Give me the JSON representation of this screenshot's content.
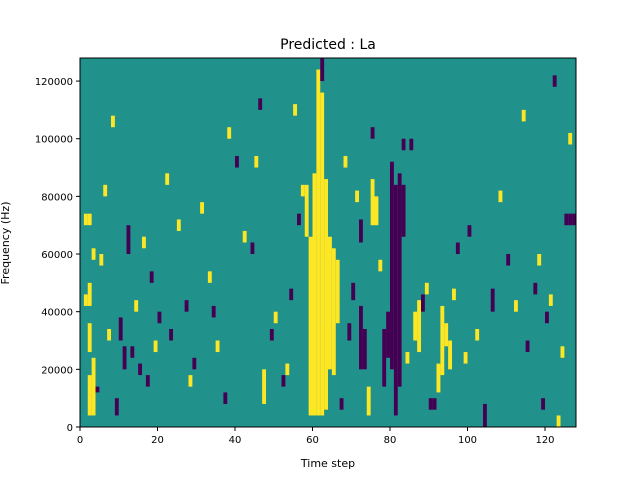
{
  "chart_data": {
    "type": "heatmap",
    "title": "Predicted : La",
    "xlabel": "Time step",
    "ylabel": "Frequency (Hz)",
    "xlim": [
      0,
      128
    ],
    "ylim": [
      0,
      128000
    ],
    "x_ticks": [
      0,
      20,
      40,
      60,
      80,
      100,
      120
    ],
    "y_ticks": [
      0,
      20000,
      40000,
      60000,
      80000,
      100000,
      120000
    ],
    "x_tick_labels": [
      "0",
      "20",
      "40",
      "60",
      "80",
      "100",
      "120"
    ],
    "y_tick_labels": [
      "0",
      "20000",
      "40000",
      "60000",
      "80000",
      "100000",
      "120000"
    ],
    "grid": false,
    "colormap": "viridis",
    "background_value": 0,
    "colors": {
      "low": "#440154",
      "mid": "#21918c",
      "high": "#fde725"
    },
    "cells": [
      {
        "t": 61,
        "f0": 4000,
        "f1": 124000,
        "v": 1
      },
      {
        "t": 62,
        "f0": 4000,
        "f1": 116000,
        "v": 1
      },
      {
        "t": 60,
        "f0": 4000,
        "f1": 88000,
        "v": 1
      },
      {
        "t": 63,
        "f0": 6000,
        "f1": 86000,
        "v": 1
      },
      {
        "t": 64,
        "f0": 20000,
        "f1": 66000,
        "v": 1
      },
      {
        "t": 65,
        "f0": 18000,
        "f1": 62000,
        "v": 1
      },
      {
        "t": 59,
        "f0": 4000,
        "f1": 66000,
        "v": 1
      },
      {
        "t": 58,
        "f0": 66000,
        "f1": 84000,
        "v": 1
      },
      {
        "t": 66,
        "f0": 36000,
        "f1": 58000,
        "v": 1
      },
      {
        "t": 62,
        "f0": 120000,
        "f1": 128000,
        "v": -1
      },
      {
        "t": 80,
        "f0": 20000,
        "f1": 92000,
        "v": -1
      },
      {
        "t": 81,
        "f0": 4000,
        "f1": 84000,
        "v": -1
      },
      {
        "t": 79,
        "f0": 24000,
        "f1": 40000,
        "v": -1
      },
      {
        "t": 78,
        "f0": 14000,
        "f1": 34000,
        "v": -1
      },
      {
        "t": 82,
        "f0": 14000,
        "f1": 88000,
        "v": -1
      },
      {
        "t": 83,
        "f0": 66000,
        "f1": 84000,
        "v": -1
      },
      {
        "t": 72,
        "f0": 20000,
        "f1": 42000,
        "v": -1
      },
      {
        "t": 73,
        "f0": 20000,
        "f1": 34000,
        "v": -1
      },
      {
        "t": 72,
        "f0": 64000,
        "f1": 72000,
        "v": -1
      },
      {
        "t": 75,
        "f0": 70000,
        "f1": 86000,
        "v": 1
      },
      {
        "t": 76,
        "f0": 70000,
        "f1": 80000,
        "v": 1
      },
      {
        "t": 74,
        "f0": 4000,
        "f1": 14000,
        "v": 1
      },
      {
        "t": 86,
        "f0": 30000,
        "f1": 40000,
        "v": 1
      },
      {
        "t": 87,
        "f0": 26000,
        "f1": 44000,
        "v": 1
      },
      {
        "t": 92,
        "f0": 12000,
        "f1": 22000,
        "v": 1
      },
      {
        "t": 93,
        "f0": 18000,
        "f1": 42000,
        "v": 1
      },
      {
        "t": 94,
        "f0": 28000,
        "f1": 36000,
        "v": 1
      },
      {
        "t": 95,
        "f0": 20000,
        "f1": 30000,
        "v": 1
      },
      {
        "t": 90,
        "f0": 6000,
        "f1": 10000,
        "v": -1
      },
      {
        "t": 91,
        "f0": 6000,
        "f1": 10000,
        "v": -1
      },
      {
        "t": 83,
        "f0": 96000,
        "f1": 100000,
        "v": -1
      },
      {
        "t": 85,
        "f0": 96000,
        "f1": 100000,
        "v": -1
      },
      {
        "t": 125,
        "f0": 70000,
        "f1": 74000,
        "v": -1
      },
      {
        "t": 126,
        "f0": 70000,
        "f1": 74000,
        "v": -1
      },
      {
        "t": 127,
        "f0": 70000,
        "f1": 74000,
        "v": -1
      },
      {
        "t": 2,
        "f0": 4000,
        "f1": 18000,
        "v": 1
      },
      {
        "t": 3,
        "f0": 4000,
        "f1": 24000,
        "v": 1
      },
      {
        "t": 2,
        "f0": 26000,
        "f1": 36000,
        "v": 1
      },
      {
        "t": 1,
        "f0": 42000,
        "f1": 46000,
        "v": 1
      },
      {
        "t": 2,
        "f0": 42000,
        "f1": 50000,
        "v": 1
      },
      {
        "t": 1,
        "f0": 70000,
        "f1": 74000,
        "v": 1
      },
      {
        "t": 2,
        "f0": 70000,
        "f1": 74000,
        "v": 1
      },
      {
        "t": 3,
        "f0": 58000,
        "f1": 62000,
        "v": 1
      },
      {
        "t": 4,
        "f0": 12000,
        "f1": 14000,
        "v": -1
      },
      {
        "t": 9,
        "f0": 4000,
        "f1": 10000,
        "v": -1
      },
      {
        "t": 10,
        "f0": 30000,
        "f1": 38000,
        "v": -1
      },
      {
        "t": 11,
        "f0": 20000,
        "f1": 28000,
        "v": -1
      },
      {
        "t": 12,
        "f0": 60000,
        "f1": 70000,
        "v": -1
      },
      {
        "t": 13,
        "f0": 24000,
        "f1": 28000,
        "v": -1
      },
      {
        "t": 15,
        "f0": 18000,
        "f1": 22000,
        "v": -1
      },
      {
        "t": 17,
        "f0": 14000,
        "f1": 18000,
        "v": -1
      },
      {
        "t": 18,
        "f0": 50000,
        "f1": 54000,
        "v": -1
      },
      {
        "t": 20,
        "f0": 36000,
        "f1": 40000,
        "v": -1
      },
      {
        "t": 23,
        "f0": 30000,
        "f1": 34000,
        "v": -1
      },
      {
        "t": 27,
        "f0": 40000,
        "f1": 44000,
        "v": -1
      },
      {
        "t": 29,
        "f0": 20000,
        "f1": 24000,
        "v": -1
      },
      {
        "t": 34,
        "f0": 38000,
        "f1": 42000,
        "v": -1
      },
      {
        "t": 37,
        "f0": 8000,
        "f1": 12000,
        "v": -1
      },
      {
        "t": 40,
        "f0": 90000,
        "f1": 94000,
        "v": -1
      },
      {
        "t": 44,
        "f0": 60000,
        "f1": 64000,
        "v": -1
      },
      {
        "t": 46,
        "f0": 110000,
        "f1": 114000,
        "v": -1
      },
      {
        "t": 49,
        "f0": 30000,
        "f1": 34000,
        "v": -1
      },
      {
        "t": 52,
        "f0": 14000,
        "f1": 18000,
        "v": -1
      },
      {
        "t": 54,
        "f0": 44000,
        "f1": 48000,
        "v": -1
      },
      {
        "t": 56,
        "f0": 70000,
        "f1": 74000,
        "v": -1
      },
      {
        "t": 67,
        "f0": 6000,
        "f1": 10000,
        "v": -1
      },
      {
        "t": 69,
        "f0": 30000,
        "f1": 36000,
        "v": -1
      },
      {
        "t": 70,
        "f0": 44000,
        "f1": 50000,
        "v": -1
      },
      {
        "t": 75,
        "f0": 100000,
        "f1": 104000,
        "v": -1
      },
      {
        "t": 88,
        "f0": 40000,
        "f1": 46000,
        "v": -1
      },
      {
        "t": 97,
        "f0": 60000,
        "f1": 64000,
        "v": -1
      },
      {
        "t": 100,
        "f0": 66000,
        "f1": 70000,
        "v": -1
      },
      {
        "t": 104,
        "f0": 0,
        "f1": 8000,
        "v": -1
      },
      {
        "t": 106,
        "f0": 40000,
        "f1": 48000,
        "v": -1
      },
      {
        "t": 110,
        "f0": 56000,
        "f1": 60000,
        "v": -1
      },
      {
        "t": 115,
        "f0": 26000,
        "f1": 30000,
        "v": -1
      },
      {
        "t": 117,
        "f0": 46000,
        "f1": 50000,
        "v": -1
      },
      {
        "t": 119,
        "f0": 6000,
        "f1": 10000,
        "v": -1
      },
      {
        "t": 120,
        "f0": 36000,
        "f1": 40000,
        "v": -1
      },
      {
        "t": 122,
        "f0": 118000,
        "f1": 122000,
        "v": -1
      },
      {
        "t": 5,
        "f0": 56000,
        "f1": 60000,
        "v": 1
      },
      {
        "t": 6,
        "f0": 80000,
        "f1": 84000,
        "v": 1
      },
      {
        "t": 7,
        "f0": 30000,
        "f1": 34000,
        "v": 1
      },
      {
        "t": 8,
        "f0": 104000,
        "f1": 108000,
        "v": 1
      },
      {
        "t": 14,
        "f0": 40000,
        "f1": 44000,
        "v": 1
      },
      {
        "t": 16,
        "f0": 62000,
        "f1": 66000,
        "v": 1
      },
      {
        "t": 19,
        "f0": 26000,
        "f1": 30000,
        "v": 1
      },
      {
        "t": 22,
        "f0": 84000,
        "f1": 88000,
        "v": 1
      },
      {
        "t": 25,
        "f0": 68000,
        "f1": 72000,
        "v": 1
      },
      {
        "t": 28,
        "f0": 14000,
        "f1": 18000,
        "v": 1
      },
      {
        "t": 31,
        "f0": 74000,
        "f1": 78000,
        "v": 1
      },
      {
        "t": 33,
        "f0": 50000,
        "f1": 54000,
        "v": 1
      },
      {
        "t": 35,
        "f0": 26000,
        "f1": 30000,
        "v": 1
      },
      {
        "t": 38,
        "f0": 100000,
        "f1": 104000,
        "v": 1
      },
      {
        "t": 42,
        "f0": 64000,
        "f1": 68000,
        "v": 1
      },
      {
        "t": 45,
        "f0": 90000,
        "f1": 94000,
        "v": 1
      },
      {
        "t": 47,
        "f0": 8000,
        "f1": 20000,
        "v": 1
      },
      {
        "t": 50,
        "f0": 36000,
        "f1": 40000,
        "v": 1
      },
      {
        "t": 53,
        "f0": 18000,
        "f1": 22000,
        "v": 1
      },
      {
        "t": 55,
        "f0": 108000,
        "f1": 112000,
        "v": 1
      },
      {
        "t": 57,
        "f0": 80000,
        "f1": 84000,
        "v": 1
      },
      {
        "t": 68,
        "f0": 90000,
        "f1": 94000,
        "v": 1
      },
      {
        "t": 71,
        "f0": 78000,
        "f1": 82000,
        "v": 1
      },
      {
        "t": 77,
        "f0": 54000,
        "f1": 58000,
        "v": 1
      },
      {
        "t": 84,
        "f0": 22000,
        "f1": 26000,
        "v": 1
      },
      {
        "t": 89,
        "f0": 46000,
        "f1": 50000,
        "v": 1
      },
      {
        "t": 96,
        "f0": 44000,
        "f1": 48000,
        "v": 1
      },
      {
        "t": 99,
        "f0": 22000,
        "f1": 26000,
        "v": 1
      },
      {
        "t": 102,
        "f0": 30000,
        "f1": 34000,
        "v": 1
      },
      {
        "t": 108,
        "f0": 78000,
        "f1": 82000,
        "v": 1
      },
      {
        "t": 112,
        "f0": 40000,
        "f1": 44000,
        "v": 1
      },
      {
        "t": 114,
        "f0": 106000,
        "f1": 110000,
        "v": 1
      },
      {
        "t": 118,
        "f0": 56000,
        "f1": 60000,
        "v": 1
      },
      {
        "t": 121,
        "f0": 42000,
        "f1": 46000,
        "v": 1
      },
      {
        "t": 123,
        "f0": 0,
        "f1": 4000,
        "v": 1
      },
      {
        "t": 124,
        "f0": 24000,
        "f1": 28000,
        "v": 1
      },
      {
        "t": 126,
        "f0": 98000,
        "f1": 102000,
        "v": 1
      }
    ]
  }
}
